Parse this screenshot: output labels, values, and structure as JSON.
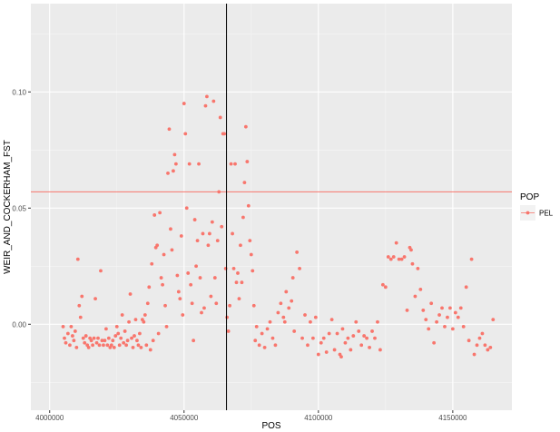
{
  "chart_data": {
    "type": "scatter",
    "title": "",
    "xlabel": "POS",
    "ylabel": "WEIR_AND_COCKERHAM_FST",
    "xlim": [
      3993000,
      4172000
    ],
    "ylim": [
      -0.037,
      0.138
    ],
    "x_ticks": [
      4000000,
      4050000,
      4100000,
      4150000
    ],
    "x_tick_labels": [
      "4000000",
      "4050000",
      "4100000",
      "4150000"
    ],
    "y_ticks": [
      0.0,
      0.05,
      0.1
    ],
    "y_tick_labels": [
      "0.00",
      "0.05",
      "0.10"
    ],
    "grid": true,
    "legend": {
      "title": "POP",
      "position": "right",
      "entries": [
        {
          "label": "PEL",
          "color": "#F8766D"
        }
      ]
    },
    "point_color": "#F8766D",
    "hline": {
      "y": 0.057,
      "color": "#F8766D"
    },
    "vline": {
      "x": 4065800,
      "color": "#000000"
    },
    "series": [
      {
        "name": "PEL",
        "points": [
          [
            4005000,
            -0.001
          ],
          [
            4005500,
            -0.006
          ],
          [
            4006000,
            -0.008
          ],
          [
            4006800,
            -0.004
          ],
          [
            4007500,
            -0.009
          ],
          [
            4008000,
            -0.001
          ],
          [
            4008500,
            -0.005
          ],
          [
            4009000,
            -0.007
          ],
          [
            4009500,
            -0.003
          ],
          [
            4010000,
            -0.01
          ],
          [
            4010500,
            0.028
          ],
          [
            4011000,
            0.008
          ],
          [
            4011500,
            0.003
          ],
          [
            4012000,
            0.012
          ],
          [
            4012500,
            -0.006
          ],
          [
            4013000,
            -0.008
          ],
          [
            4013500,
            -0.005
          ],
          [
            4014000,
            -0.009
          ],
          [
            4014500,
            -0.01
          ],
          [
            4015000,
            -0.006
          ],
          [
            4015500,
            -0.007
          ],
          [
            4016000,
            -0.009
          ],
          [
            4016500,
            -0.006
          ],
          [
            4017000,
            0.011
          ],
          [
            4017500,
            -0.008
          ],
          [
            4018000,
            -0.006
          ],
          [
            4018500,
            -0.009
          ],
          [
            4019000,
            0.023
          ],
          [
            4019500,
            -0.007
          ],
          [
            4020000,
            -0.009
          ],
          [
            4020500,
            -0.007
          ],
          [
            4021000,
            -0.002
          ],
          [
            4021500,
            -0.009
          ],
          [
            4022000,
            -0.006
          ],
          [
            4022500,
            -0.01
          ],
          [
            4023000,
            -0.009
          ],
          [
            4023500,
            -0.007
          ],
          [
            4024000,
            -0.01
          ],
          [
            4024500,
            -0.005
          ],
          [
            4025000,
            -0.001
          ],
          [
            4025500,
            -0.004
          ],
          [
            4026000,
            -0.009
          ],
          [
            4026500,
            -0.006
          ],
          [
            4027000,
            0.004
          ],
          [
            4027500,
            -0.008
          ],
          [
            4028000,
            -0.003
          ],
          [
            4028500,
            -0.009
          ],
          [
            4029000,
            -0.007
          ],
          [
            4029500,
            0.001
          ],
          [
            4030000,
            0.013
          ],
          [
            4030500,
            -0.006
          ],
          [
            4031000,
            -0.01
          ],
          [
            4031500,
            -0.005
          ],
          [
            4032000,
            0.002
          ],
          [
            4032500,
            -0.007
          ],
          [
            4033000,
            -0.009
          ],
          [
            4033500,
            -0.004
          ],
          [
            4034000,
            -0.01
          ],
          [
            4034500,
            0.002
          ],
          [
            4035000,
            0.001
          ],
          [
            4035500,
            0.004
          ],
          [
            4036000,
            -0.009
          ],
          [
            4036500,
            0.009
          ],
          [
            4037000,
            0.016
          ],
          [
            4037500,
            -0.011
          ],
          [
            4038000,
            0.026
          ],
          [
            4038500,
            -0.007
          ],
          [
            4039000,
            0.047
          ],
          [
            4039500,
            0.033
          ],
          [
            4040000,
            0.034
          ],
          [
            4040500,
            -0.004
          ],
          [
            4041000,
            0.048
          ],
          [
            4041500,
            0.02
          ],
          [
            4042000,
            0.017
          ],
          [
            4042500,
            0.03
          ],
          [
            4043000,
            0.008
          ],
          [
            4043500,
            -0.001
          ],
          [
            4044000,
            0.065
          ],
          [
            4044500,
            0.084
          ],
          [
            4045000,
            0.041
          ],
          [
            4045500,
            0.032
          ],
          [
            4046000,
            0.066
          ],
          [
            4046500,
            0.073
          ],
          [
            4047000,
            0.069
          ],
          [
            4047500,
            0.021
          ],
          [
            4048000,
            0.014
          ],
          [
            4048500,
            0.011
          ],
          [
            4049000,
            0.038
          ],
          [
            4049500,
            0.004
          ],
          [
            4050000,
            0.095
          ],
          [
            4050500,
            0.082
          ],
          [
            4051000,
            0.05
          ],
          [
            4051500,
            0.022
          ],
          [
            4052000,
            0.069
          ],
          [
            4052500,
            0.017
          ],
          [
            4053000,
            0.009
          ],
          [
            4053500,
            -0.007
          ],
          [
            4054000,
            0.045
          ],
          [
            4054500,
            0.025
          ],
          [
            4055000,
            0.036
          ],
          [
            4055500,
            0.069
          ],
          [
            4056000,
            0.02
          ],
          [
            4056500,
            0.005
          ],
          [
            4057000,
            0.039
          ],
          [
            4057500,
            0.007
          ],
          [
            4058000,
            0.094
          ],
          [
            4058500,
            0.098
          ],
          [
            4059000,
            0.034
          ],
          [
            4059500,
            0.039
          ],
          [
            4060000,
            0.012
          ],
          [
            4060500,
            0.044
          ],
          [
            4061000,
            0.096
          ],
          [
            4061500,
            0.02
          ],
          [
            4062000,
            0.009
          ],
          [
            4062500,
            0.036
          ],
          [
            4063000,
            0.057
          ],
          [
            4063500,
            0.089
          ],
          [
            4064000,
            0.042
          ],
          [
            4064500,
            0.082
          ],
          [
            4065000,
            0.082
          ],
          [
            4065500,
            0.024
          ],
          [
            4066000,
            0.003
          ],
          [
            4066500,
            -0.003
          ],
          [
            4067000,
            0.008
          ],
          [
            4067500,
            0.069
          ],
          [
            4068000,
            0.039
          ],
          [
            4068500,
            0.024
          ],
          [
            4069000,
            0.069
          ],
          [
            4069500,
            0.018
          ],
          [
            4070000,
            0.022
          ],
          [
            4070500,
            0.011
          ],
          [
            4071000,
            0.034
          ],
          [
            4071500,
            0.018
          ],
          [
            4072000,
            0.046
          ],
          [
            4072500,
            0.061
          ],
          [
            4073000,
            0.085
          ],
          [
            4073500,
            0.07
          ],
          [
            4074000,
            0.051
          ],
          [
            4074500,
            0.036
          ],
          [
            4075000,
            0.03
          ],
          [
            4075500,
            0.023
          ],
          [
            4076000,
            0.008
          ],
          [
            4076500,
            -0.007
          ],
          [
            4077000,
            -0.001
          ],
          [
            4078000,
            -0.009
          ],
          [
            4079000,
            -0.004
          ],
          [
            4080000,
            -0.01
          ],
          [
            4081000,
            -0.002
          ],
          [
            4082000,
            0.001
          ],
          [
            4083000,
            -0.006
          ],
          [
            4084000,
            -0.009
          ],
          [
            4085000,
            0.005
          ],
          [
            4086000,
            0.009
          ],
          [
            4087000,
            0.003
          ],
          [
            4087500,
            0.001
          ],
          [
            4088000,
            0.014
          ],
          [
            4089000,
            0.007
          ],
          [
            4090000,
            0.01
          ],
          [
            4090500,
            0.02
          ],
          [
            4091000,
            -0.003
          ],
          [
            4092000,
            0.031
          ],
          [
            4093000,
            0.024
          ],
          [
            4094000,
            -0.006
          ],
          [
            4095000,
            0.004
          ],
          [
            4096000,
            -0.009
          ],
          [
            4097000,
            0.001
          ],
          [
            4098000,
            -0.006
          ],
          [
            4099000,
            0.003
          ],
          [
            4100000,
            -0.013
          ],
          [
            4101000,
            -0.008
          ],
          [
            4102000,
            -0.006
          ],
          [
            4103000,
            -0.012
          ],
          [
            4104000,
            -0.004
          ],
          [
            4105000,
            0.002
          ],
          [
            4106000,
            -0.011
          ],
          [
            4107000,
            -0.004
          ],
          [
            4108000,
            -0.013
          ],
          [
            4108500,
            -0.014
          ],
          [
            4109000,
            -0.002
          ],
          [
            4110000,
            -0.008
          ],
          [
            4111000,
            -0.006
          ],
          [
            4112000,
            -0.011
          ],
          [
            4113000,
            -0.005
          ],
          [
            4114000,
            0.001
          ],
          [
            4115000,
            -0.003
          ],
          [
            4116000,
            -0.009
          ],
          [
            4117000,
            -0.005
          ],
          [
            4118000,
            -0.006
          ],
          [
            4119000,
            -0.01
          ],
          [
            4120000,
            -0.003
          ],
          [
            4121000,
            -0.006
          ],
          [
            4122000,
            0.001
          ],
          [
            4123000,
            -0.011
          ],
          [
            4124000,
            0.017
          ],
          [
            4125000,
            0.016
          ],
          [
            4126000,
            0.029
          ],
          [
            4127000,
            0.028
          ],
          [
            4128000,
            0.029
          ],
          [
            4129000,
            0.035
          ],
          [
            4130000,
            0.028
          ],
          [
            4131000,
            0.028
          ],
          [
            4132000,
            0.029
          ],
          [
            4133000,
            0.006
          ],
          [
            4134000,
            0.033
          ],
          [
            4134500,
            0.032
          ],
          [
            4135000,
            0.026
          ],
          [
            4136000,
            0.012
          ],
          [
            4137000,
            0.024
          ],
          [
            4138000,
            0.015
          ],
          [
            4139000,
            0.006
          ],
          [
            4140000,
            0.002
          ],
          [
            4141000,
            -0.002
          ],
          [
            4142000,
            0.009
          ],
          [
            4143000,
            -0.008
          ],
          [
            4144000,
            0.001
          ],
          [
            4145000,
            0.004
          ],
          [
            4146000,
            0.007
          ],
          [
            4147000,
            -0.001
          ],
          [
            4148000,
            0.003
          ],
          [
            4149000,
            0.007
          ],
          [
            4150000,
            -0.002
          ],
          [
            4151000,
            0.005
          ],
          [
            4152000,
            0.003
          ],
          [
            4153000,
            0.007
          ],
          [
            4154000,
            -0.001
          ],
          [
            4155000,
            0.016
          ],
          [
            4156000,
            -0.007
          ],
          [
            4157000,
            0.028
          ],
          [
            4158000,
            -0.013
          ],
          [
            4159000,
            -0.009
          ],
          [
            4160000,
            -0.006
          ],
          [
            4161000,
            -0.004
          ],
          [
            4162000,
            -0.009
          ],
          [
            4163000,
            -0.011
          ],
          [
            4164000,
            -0.01
          ],
          [
            4165000,
            0.002
          ]
        ]
      }
    ]
  }
}
